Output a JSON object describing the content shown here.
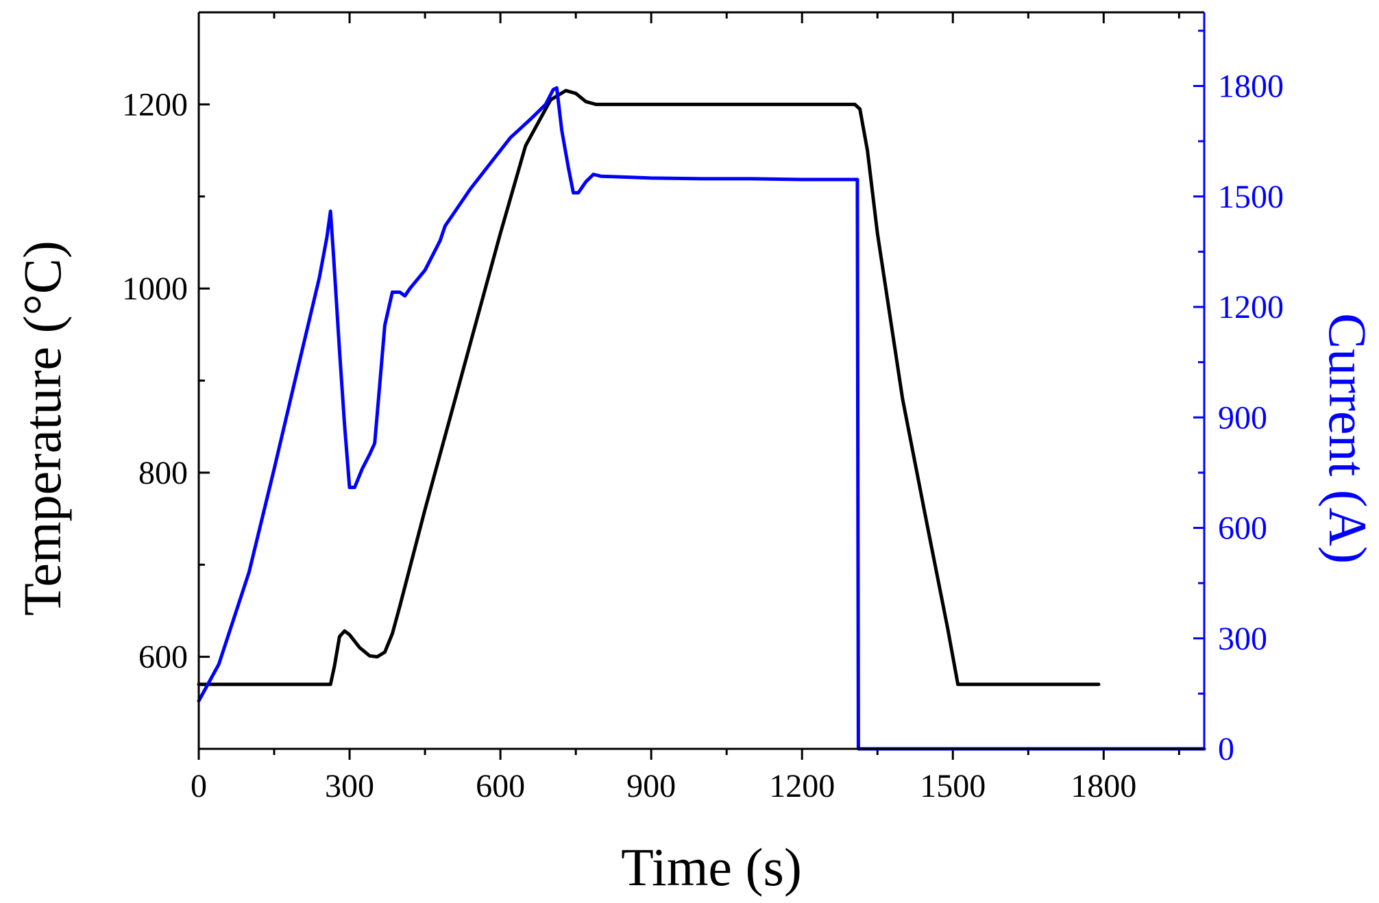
{
  "chart_data": {
    "type": "line",
    "title": "",
    "xlabel": "Time (s)",
    "ylabel_left": "Temperature (°C)",
    "ylabel_right": "Current (A)",
    "xlim": [
      0,
      2000
    ],
    "ylim_left": [
      500,
      1300
    ],
    "ylim_right": [
      0,
      2000
    ],
    "x_ticks": [
      "0",
      "300",
      "600",
      "900",
      "1200",
      "1500",
      "1800"
    ],
    "y_left_ticks": [
      "600",
      "800",
      "1000",
      "1200"
    ],
    "y_right_ticks": [
      "0",
      "300",
      "600",
      "900",
      "1200",
      "1500",
      "1800"
    ],
    "grid": false,
    "legend": "none",
    "series": [
      {
        "axis": "left",
        "color": "#000000",
        "points": [
          [
            0,
            570
          ],
          [
            262,
            570
          ],
          [
            270,
            590
          ],
          [
            280,
            622
          ],
          [
            290,
            628
          ],
          [
            300,
            624
          ],
          [
            320,
            610
          ],
          [
            340,
            601
          ],
          [
            355,
            600
          ],
          [
            370,
            605
          ],
          [
            385,
            625
          ],
          [
            400,
            655
          ],
          [
            450,
            760
          ],
          [
            500,
            860
          ],
          [
            550,
            960
          ],
          [
            600,
            1060
          ],
          [
            650,
            1155
          ],
          [
            700,
            1205
          ],
          [
            730,
            1215
          ],
          [
            750,
            1212
          ],
          [
            770,
            1203
          ],
          [
            790,
            1200
          ],
          [
            900,
            1200
          ],
          [
            1000,
            1200
          ],
          [
            1100,
            1200
          ],
          [
            1200,
            1200
          ],
          [
            1305,
            1200
          ],
          [
            1315,
            1195
          ],
          [
            1330,
            1150
          ],
          [
            1350,
            1060
          ],
          [
            1400,
            880
          ],
          [
            1450,
            740
          ],
          [
            1490,
            630
          ],
          [
            1510,
            570
          ],
          [
            1790,
            570
          ]
        ]
      },
      {
        "axis": "right",
        "color": "#0000ff",
        "points": [
          [
            0,
            130
          ],
          [
            40,
            230
          ],
          [
            100,
            480
          ],
          [
            150,
            760
          ],
          [
            200,
            1050
          ],
          [
            240,
            1280
          ],
          [
            255,
            1390
          ],
          [
            262,
            1460
          ],
          [
            268,
            1340
          ],
          [
            280,
            1080
          ],
          [
            290,
            880
          ],
          [
            300,
            710
          ],
          [
            310,
            710
          ],
          [
            325,
            760
          ],
          [
            340,
            800
          ],
          [
            350,
            830
          ],
          [
            360,
            990
          ],
          [
            370,
            1150
          ],
          [
            385,
            1240
          ],
          [
            400,
            1240
          ],
          [
            410,
            1230
          ],
          [
            420,
            1250
          ],
          [
            450,
            1300
          ],
          [
            480,
            1380
          ],
          [
            490,
            1420
          ],
          [
            500,
            1440
          ],
          [
            540,
            1520
          ],
          [
            580,
            1590
          ],
          [
            620,
            1660
          ],
          [
            660,
            1710
          ],
          [
            690,
            1750
          ],
          [
            705,
            1790
          ],
          [
            712,
            1795
          ],
          [
            722,
            1680
          ],
          [
            735,
            1580
          ],
          [
            745,
            1510
          ],
          [
            755,
            1510
          ],
          [
            770,
            1540
          ],
          [
            785,
            1560
          ],
          [
            800,
            1555
          ],
          [
            900,
            1550
          ],
          [
            1000,
            1548
          ],
          [
            1100,
            1548
          ],
          [
            1200,
            1546
          ],
          [
            1300,
            1546
          ],
          [
            1310,
            1546
          ],
          [
            1312,
            0
          ],
          [
            1800,
            0
          ],
          [
            2000,
            0
          ]
        ]
      }
    ]
  }
}
